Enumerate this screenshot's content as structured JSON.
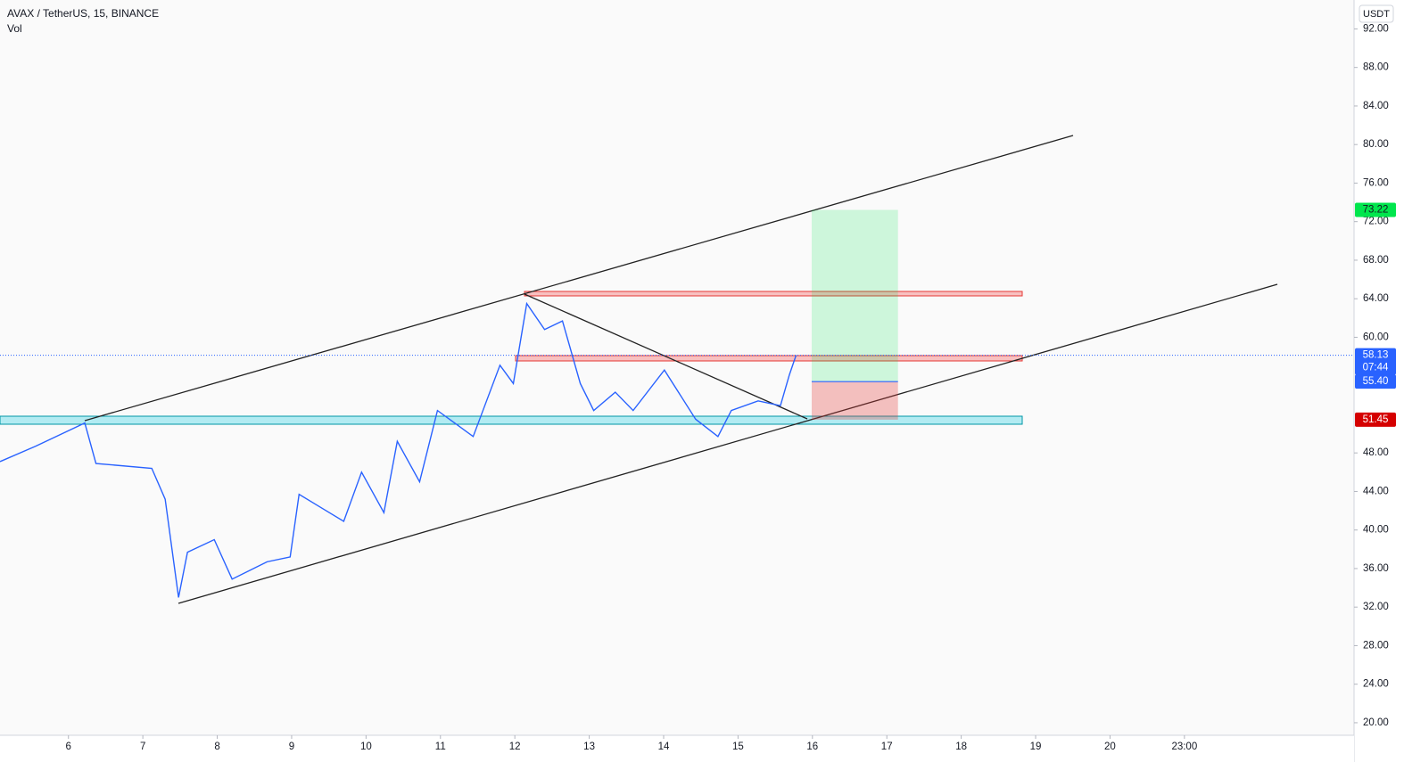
{
  "chart_data": {
    "type": "line",
    "title": "AVAX / TetherUS, 15, BINANCE",
    "subtitle": "Vol",
    "y_axis_label": "USDT",
    "x": [
      5.08,
      5.56,
      6.22,
      6.37,
      7.12,
      7.3,
      7.48,
      7.6,
      7.96,
      8.2,
      8.67,
      8.98,
      9.1,
      9.4,
      9.7,
      9.94,
      10.24,
      10.42,
      10.72,
      10.96,
      11.44,
      11.8,
      11.98,
      12.16,
      12.4,
      12.64,
      12.88,
      13.06,
      13.35,
      13.59,
      14.01,
      14.43,
      14.73,
      14.91,
      15.27,
      15.57,
      15.69,
      15.78
    ],
    "series": [
      {
        "name": "AVAX / TetherUS",
        "color": "#2962ff",
        "values": [
          47.1,
          48.7,
          51.1,
          46.9,
          46.4,
          43.2,
          33.0,
          37.7,
          39.0,
          34.9,
          36.7,
          37.2,
          43.7,
          42.3,
          40.9,
          46.0,
          41.8,
          49.2,
          45.0,
          52.4,
          49.7,
          57.1,
          55.2,
          63.5,
          60.8,
          61.7,
          55.2,
          52.4,
          54.3,
          52.4,
          56.6,
          51.5,
          49.7,
          52.4,
          53.4,
          52.9,
          56.1,
          58.13
        ]
      }
    ],
    "xlim": [
      5.08,
      23.28
    ],
    "ylim": [
      18.7,
      95
    ],
    "xticks": [
      6,
      7,
      8,
      9,
      10,
      11,
      12,
      13,
      14,
      15,
      16,
      17,
      18,
      19,
      20,
      {
        "value": 21,
        "label": "23:00"
      }
    ],
    "yticks": [
      {
        "value": 20,
        "label": "20.00"
      },
      {
        "value": 24,
        "label": "24.00"
      },
      {
        "value": 28,
        "label": "28.00"
      },
      {
        "value": 32,
        "label": "32.00"
      },
      {
        "value": 36,
        "label": "36.00"
      },
      {
        "value": 40,
        "label": "40.00"
      },
      {
        "value": 44,
        "label": "44.00"
      },
      {
        "value": 48,
        "label": "48.00"
      },
      {
        "value": 60,
        "label": "60.00"
      },
      {
        "value": 64,
        "label": "64.00"
      },
      {
        "value": 68,
        "label": "68.00"
      },
      {
        "value": 72,
        "label": "72.00"
      },
      {
        "value": 76,
        "label": "76.00"
      },
      {
        "value": 80,
        "label": "80.00"
      },
      {
        "value": 84,
        "label": "84.00"
      },
      {
        "value": 88,
        "label": "88.00"
      },
      {
        "value": 92,
        "label": "92.00"
      }
    ],
    "price_labels": [
      {
        "value": 73.22,
        "label": "73.22",
        "color": "#00e64d"
      },
      {
        "value": 58.13,
        "label": "58.13",
        "color": "#2962ff"
      },
      {
        "value": 55.4,
        "label": "55.40",
        "color": "#2962ff"
      },
      {
        "value": 51.45,
        "label": "51.45",
        "color": "#d50000"
      }
    ],
    "countdown": "07:44"
  }
}
